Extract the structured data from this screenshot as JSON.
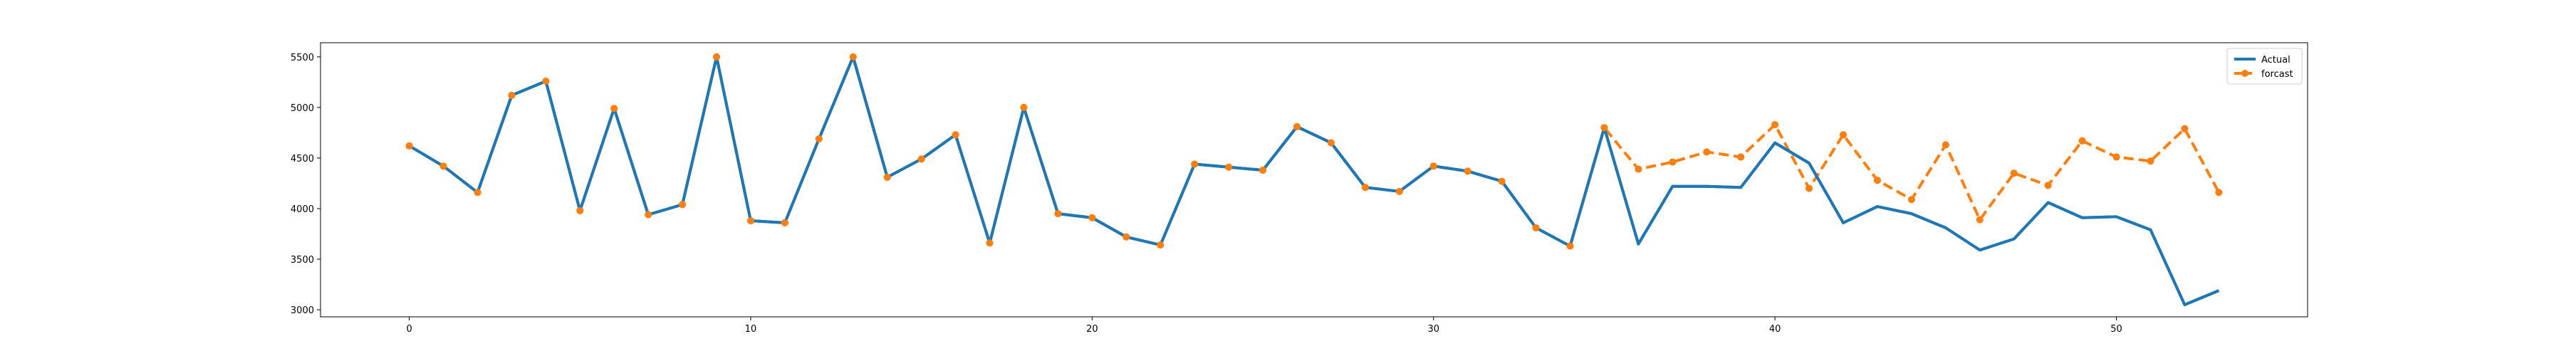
{
  "chart_data": {
    "type": "line",
    "title": "",
    "xlabel": "",
    "ylabel": "",
    "xlim": [
      -2.6,
      55.6
    ],
    "ylim": [
      2930,
      5640
    ],
    "grid": false,
    "legend_position": "top-right",
    "x_ticks": [
      0,
      10,
      20,
      30,
      40,
      50
    ],
    "y_ticks": [
      3000,
      3500,
      4000,
      4500,
      5000,
      5500
    ],
    "series": [
      {
        "name": "Actual",
        "color": "#1f77b4",
        "line_style": "solid",
        "marker": "none",
        "x": [
          0,
          1,
          2,
          3,
          4,
          5,
          6,
          7,
          8,
          9,
          10,
          11,
          12,
          13,
          14,
          15,
          16,
          17,
          18,
          19,
          20,
          21,
          22,
          23,
          24,
          25,
          26,
          27,
          28,
          29,
          30,
          31,
          32,
          33,
          34,
          35,
          36,
          37,
          38,
          39,
          40,
          41,
          42,
          43,
          44,
          45,
          46,
          47,
          48,
          49,
          50,
          51,
          52,
          53
        ],
        "values": [
          4620,
          4420,
          4160,
          5120,
          5260,
          3980,
          4990,
          3940,
          4040,
          5500,
          3880,
          3860,
          4690,
          5500,
          4310,
          4490,
          4730,
          3660,
          5000,
          3950,
          3910,
          3720,
          3640,
          4440,
          4410,
          4380,
          4810,
          4650,
          4210,
          4170,
          4420,
          4370,
          4270,
          3810,
          3630,
          4800,
          3650,
          4220,
          4220,
          4210,
          4650,
          4450,
          3860,
          4020,
          3950,
          3810,
          3590,
          3700,
          4060,
          3910,
          3920,
          3790,
          3050,
          3190
        ]
      },
      {
        "name": "forcast",
        "color": "#ff7f0e",
        "line_style": "dashed",
        "marker": "circle",
        "x": [
          0,
          1,
          2,
          3,
          4,
          5,
          6,
          7,
          8,
          9,
          10,
          11,
          12,
          13,
          14,
          15,
          16,
          17,
          18,
          19,
          20,
          21,
          22,
          23,
          24,
          25,
          26,
          27,
          28,
          29,
          30,
          31,
          32,
          33,
          34,
          35,
          36,
          37,
          38,
          39,
          40,
          41,
          42,
          43,
          44,
          45,
          46,
          47,
          48,
          49,
          50,
          51,
          52,
          53
        ],
        "values": [
          4620,
          4420,
          4160,
          5120,
          5260,
          3980,
          4990,
          3940,
          4040,
          5500,
          3880,
          3860,
          4690,
          5500,
          4310,
          4490,
          4730,
          3660,
          5000,
          3950,
          3910,
          3720,
          3640,
          4440,
          4410,
          4380,
          4810,
          4650,
          4210,
          4170,
          4420,
          4370,
          4270,
          3810,
          3630,
          4800,
          4390,
          4460,
          4560,
          4510,
          4830,
          4200,
          4730,
          4280,
          4090,
          4630,
          3890,
          4350,
          4230,
          4670,
          4510,
          4470,
          4790,
          4160
        ]
      }
    ]
  }
}
